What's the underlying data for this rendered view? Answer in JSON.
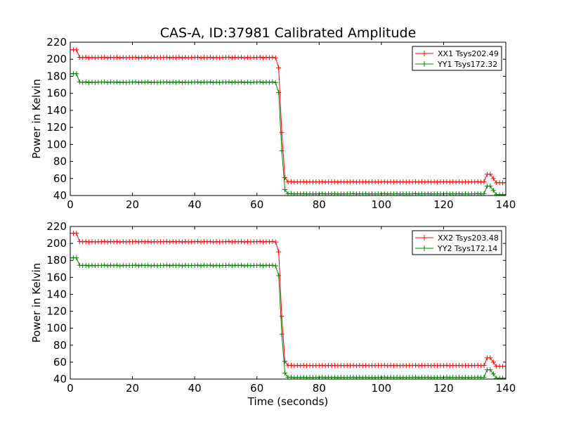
{
  "title": "CAS-A, ID:37981 Calibrated Amplitude",
  "colors": {
    "red": "#ff0000",
    "green": "#008000",
    "axes": "#000000",
    "background": "#ffffff"
  },
  "chart_data": [
    {
      "type": "line",
      "title": "CAS-A, ID:37981 Calibrated Amplitude",
      "xlabel": "",
      "ylabel": "Power in Kelvin",
      "xlim": [
        0,
        140
      ],
      "ylim": [
        40,
        220
      ],
      "xticks": [
        "0",
        "20",
        "40",
        "60",
        "80",
        "100",
        "120",
        "140"
      ],
      "yticks": [
        "40",
        "60",
        "80",
        "100",
        "120",
        "140",
        "160",
        "180",
        "200",
        "220"
      ],
      "grid": false,
      "legend_position": "top-right",
      "marker": "+",
      "series": [
        {
          "name": "XX1 Tsys202.49",
          "color": "#ff0000",
          "profile": {
            "initial": 211,
            "plateau": 202,
            "low": 56,
            "bump": 65,
            "end": 55
          }
        },
        {
          "name": "YY1 Tsys172.32",
          "color": "#008000",
          "profile": {
            "initial": 183,
            "plateau": 173,
            "low": 42,
            "bump": 51,
            "end": 41
          }
        }
      ]
    },
    {
      "type": "line",
      "title": "",
      "xlabel": "Time (seconds)",
      "ylabel": "Power in Kelvin",
      "xlim": [
        0,
        140
      ],
      "ylim": [
        40,
        220
      ],
      "xticks": [
        "0",
        "20",
        "40",
        "60",
        "80",
        "100",
        "120",
        "140"
      ],
      "yticks": [
        "40",
        "60",
        "80",
        "100",
        "120",
        "140",
        "160",
        "180",
        "200",
        "220"
      ],
      "grid": false,
      "legend_position": "top-right",
      "marker": "+",
      "series": [
        {
          "name": "XX2 Tsys203.48",
          "color": "#ff0000",
          "profile": {
            "initial": 212,
            "plateau": 202,
            "low": 56,
            "bump": 65,
            "end": 55
          }
        },
        {
          "name": "YY2 Tsys172.14",
          "color": "#008000",
          "profile": {
            "initial": 183,
            "plateau": 174,
            "low": 42,
            "bump": 51,
            "end": 41
          }
        }
      ]
    }
  ]
}
